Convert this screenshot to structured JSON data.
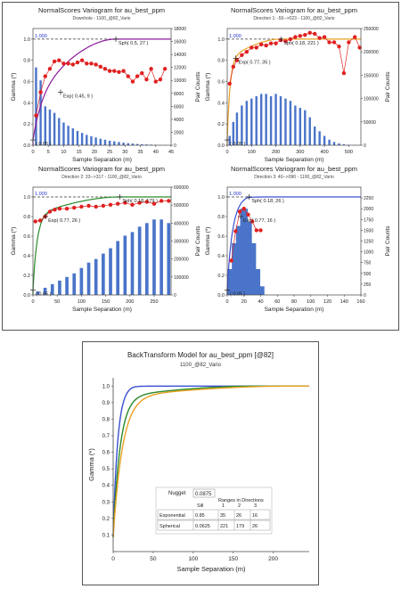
{
  "chart_data": [
    {
      "type": "scatter",
      "title": "NormalScores  Variogram for au_best_ppm",
      "subtitle": "Downhole - 1100_@82_Vario",
      "xlabel": "Sample Separation (m)",
      "ylabel": "Gamma (*)",
      "y2label": "Pair Counts",
      "xlim": [
        0,
        45
      ],
      "xticks": [
        0,
        5,
        10,
        15,
        20,
        25,
        30,
        35,
        40,
        45
      ],
      "ylim": [
        0,
        1.1
      ],
      "yticks": [
        0.0,
        0.2,
        0.4,
        0.6,
        0.8,
        1.0
      ],
      "y2lim": [
        0,
        18000
      ],
      "y2ticks": [
        0,
        2000,
        4000,
        6000,
        8000,
        10000,
        12000,
        14000,
        16000,
        18000
      ],
      "sill_label": "1.000",
      "model_color": "#8b1a9b",
      "model": {
        "nugget": 0.05,
        "exp": {
          "sill": 0.45,
          "range": 9
        },
        "sph": {
          "sill": 0.5,
          "range": 27
        }
      },
      "annotations": [
        {
          "label": "Sph( 0.5, 27 )",
          "x": 27,
          "y": 1.0
        },
        {
          "label": "Exp( 0.45, 9 )",
          "x": 9,
          "y": 0.5
        },
        {
          "label": "( 0.05 )",
          "x": 0,
          "y": 0.05
        }
      ],
      "points": [
        [
          1,
          0.28
        ],
        [
          2.5,
          0.5
        ],
        [
          4,
          0.65
        ],
        [
          5.5,
          0.72
        ],
        [
          7,
          0.79
        ],
        [
          8.5,
          0.8
        ],
        [
          10,
          0.77
        ],
        [
          11.5,
          0.77
        ],
        [
          13,
          0.76
        ],
        [
          14.5,
          0.78
        ],
        [
          16,
          0.8
        ],
        [
          17.5,
          0.77
        ],
        [
          19,
          0.77
        ],
        [
          20.5,
          0.76
        ],
        [
          22,
          0.74
        ],
        [
          23.5,
          0.72
        ],
        [
          25,
          0.7
        ],
        [
          26.5,
          0.7
        ],
        [
          28,
          0.69
        ],
        [
          29.5,
          0.7
        ],
        [
          31,
          0.65
        ],
        [
          32.5,
          0.6
        ],
        [
          34,
          0.65
        ],
        [
          35.5,
          0.68
        ],
        [
          37,
          0.62
        ],
        [
          38.5,
          0.72
        ],
        [
          40,
          0.6
        ],
        [
          41.5,
          0.62
        ],
        [
          43,
          0.72
        ]
      ],
      "pairs": [
        [
          1,
          12000
        ],
        [
          2.5,
          10000
        ],
        [
          4,
          6000
        ],
        [
          5.5,
          5500
        ],
        [
          7,
          5000
        ],
        [
          8.5,
          4200
        ],
        [
          10,
          3500
        ],
        [
          11.5,
          3000
        ],
        [
          13,
          2600
        ],
        [
          14.5,
          2200
        ],
        [
          16,
          1900
        ],
        [
          17.5,
          1600
        ],
        [
          19,
          1400
        ],
        [
          20.5,
          1200
        ],
        [
          22,
          1000
        ],
        [
          23.5,
          850
        ],
        [
          25,
          700
        ],
        [
          26.5,
          600
        ],
        [
          28,
          500
        ],
        [
          29.5,
          400
        ],
        [
          31,
          320
        ],
        [
          32.5,
          260
        ],
        [
          34,
          200
        ],
        [
          35.5,
          150
        ],
        [
          37,
          120
        ],
        [
          38.5,
          90
        ],
        [
          40,
          70
        ],
        [
          41.5,
          50
        ],
        [
          43,
          30
        ]
      ]
    },
    {
      "type": "scatter",
      "title": "NormalScores  Variogram for au_best_ppm",
      "subtitle": "Direction 1: -55-->023 - 1100_@82_Vario",
      "xlabel": "Sample Separation (m)",
      "ylabel": "Gamma (*)",
      "y2label": "Pair Counts",
      "xlim": [
        0,
        550
      ],
      "xticks": [
        0,
        100,
        200,
        300,
        400,
        500
      ],
      "ylim": [
        0,
        1.1
      ],
      "yticks": [
        0.0,
        0.2,
        0.4,
        0.6,
        0.8,
        1.0
      ],
      "y2lim": [
        0,
        250000
      ],
      "y2ticks": [
        0,
        50000,
        100000,
        150000,
        200000,
        250000
      ],
      "sill_label": "1.000",
      "model_color": "#e8a020",
      "model": {
        "nugget": 0.05,
        "exp": {
          "sill": 0.77,
          "range": 35
        },
        "sph": {
          "sill": 0.18,
          "range": 221
        }
      },
      "annotations": [
        {
          "label": "Sph( 0.18, 221 )",
          "x": 221,
          "y": 1.0
        },
        {
          "label": "Exp( 0.77, 35 )",
          "x": 35,
          "y": 0.82
        },
        {
          "label": "( 0.05 )",
          "x": 0,
          "y": 0.05
        }
      ],
      "points": [
        [
          10,
          0.58
        ],
        [
          25,
          0.74
        ],
        [
          40,
          0.8
        ],
        [
          60,
          0.85
        ],
        [
          80,
          0.88
        ],
        [
          100,
          0.92
        ],
        [
          120,
          0.92
        ],
        [
          140,
          0.95
        ],
        [
          160,
          0.94
        ],
        [
          180,
          0.96
        ],
        [
          200,
          0.96
        ],
        [
          220,
          0.99
        ],
        [
          240,
          0.98
        ],
        [
          260,
          1.0
        ],
        [
          280,
          1.02
        ],
        [
          300,
          1.03
        ],
        [
          320,
          1.04
        ],
        [
          340,
          1.06
        ],
        [
          360,
          1.05
        ],
        [
          380,
          1.01
        ],
        [
          400,
          1.02
        ],
        [
          420,
          0.97
        ],
        [
          440,
          0.97
        ],
        [
          460,
          0.93
        ],
        [
          480,
          0.68
        ],
        [
          500,
          0.97
        ],
        [
          525,
          1.02
        ],
        [
          545,
          0.92
        ]
      ],
      "pairs": [
        [
          10,
          20000
        ],
        [
          25,
          50000
        ],
        [
          40,
          70000
        ],
        [
          60,
          85000
        ],
        [
          80,
          95000
        ],
        [
          100,
          100000
        ],
        [
          120,
          105000
        ],
        [
          140,
          110000
        ],
        [
          160,
          110000
        ],
        [
          180,
          105000
        ],
        [
          200,
          110000
        ],
        [
          220,
          105000
        ],
        [
          240,
          100000
        ],
        [
          260,
          95000
        ],
        [
          280,
          85000
        ],
        [
          300,
          80000
        ],
        [
          320,
          75000
        ],
        [
          340,
          60000
        ],
        [
          360,
          40000
        ],
        [
          380,
          30000
        ],
        [
          400,
          20000
        ],
        [
          420,
          12000
        ],
        [
          440,
          7000
        ],
        [
          460,
          4000
        ],
        [
          480,
          2000
        ],
        [
          500,
          1000
        ],
        [
          525,
          500
        ],
        [
          545,
          200
        ]
      ]
    },
    {
      "type": "scatter",
      "title": "NormalScores  Variogram for au_best_ppm",
      "subtitle": "Direction 2: 33-->317 - 1100_@82_Vario",
      "xlabel": "Sample Separation (m)",
      "ylabel": "Gamma (*)",
      "y2label": "Pair Counts",
      "xlim": [
        0,
        285
      ],
      "xticks": [
        0,
        50,
        100,
        150,
        200,
        250
      ],
      "ylim": [
        0,
        1.1
      ],
      "yticks": [
        0.0,
        0.2,
        0.4,
        0.6,
        0.8,
        1.0
      ],
      "y2lim": [
        0,
        600000
      ],
      "y2ticks": [
        0,
        100000,
        200000,
        300000,
        400000,
        500000,
        600000
      ],
      "sill_label": "1.000",
      "model_color": "#2a8a2a",
      "model": {
        "nugget": 0.05,
        "exp": {
          "sill": 0.77,
          "range": 26
        },
        "sph": {
          "sill": 0.18,
          "range": 179
        }
      },
      "annotations": [
        {
          "label": "Sph( 0.18, 179 )",
          "x": 179,
          "y": 1.0
        },
        {
          "label": "Exp( 0.77, 26 )",
          "x": 26,
          "y": 0.8
        },
        {
          "label": "( 0.05 )",
          "x": 0,
          "y": 0.05
        }
      ],
      "points": [
        [
          5,
          0.75
        ],
        [
          15,
          0.76
        ],
        [
          25,
          0.8
        ],
        [
          35,
          0.85
        ],
        [
          45,
          0.87
        ],
        [
          55,
          0.88
        ],
        [
          70,
          0.88
        ],
        [
          85,
          0.89
        ],
        [
          100,
          0.9
        ],
        [
          115,
          0.91
        ],
        [
          130,
          0.9
        ],
        [
          145,
          0.91
        ],
        [
          160,
          0.92
        ],
        [
          175,
          0.93
        ],
        [
          190,
          0.94
        ],
        [
          205,
          0.92
        ],
        [
          220,
          0.94
        ],
        [
          235,
          0.95
        ],
        [
          250,
          0.93
        ],
        [
          265,
          0.96
        ],
        [
          280,
          0.96
        ]
      ],
      "pairs": [
        [
          10,
          20000
        ],
        [
          25,
          40000
        ],
        [
          40,
          60000
        ],
        [
          55,
          80000
        ],
        [
          70,
          100000
        ],
        [
          85,
          120000
        ],
        [
          100,
          150000
        ],
        [
          115,
          180000
        ],
        [
          130,
          200000
        ],
        [
          145,
          230000
        ],
        [
          160,
          260000
        ],
        [
          175,
          300000
        ],
        [
          190,
          330000
        ],
        [
          205,
          350000
        ],
        [
          220,
          380000
        ],
        [
          235,
          400000
        ],
        [
          250,
          420000
        ],
        [
          265,
          420000
        ],
        [
          280,
          400000
        ]
      ]
    },
    {
      "type": "scatter",
      "title": "NormalScores  Variogram for au_best_ppm",
      "subtitle": "Direction 3: 40-->090 - 1100_@82_Vario",
      "xlabel": "Sample Separation (m)",
      "ylabel": "Gamma (*)",
      "y2label": "Pair Counts",
      "xlim": [
        0,
        160
      ],
      "xticks": [
        0,
        20,
        40,
        60,
        80,
        100,
        120,
        140,
        160
      ],
      "ylim": [
        0,
        1.1
      ],
      "yticks": [
        0.0,
        0.2,
        0.4,
        0.6,
        0.8,
        1.0
      ],
      "y2lim": [
        0,
        2500
      ],
      "y2ticks": [
        0,
        250,
        500,
        750,
        1000,
        1250,
        1500,
        1750,
        2000,
        2250
      ],
      "sill_label": "1.000",
      "model_color": "#3a4fd0",
      "model": {
        "nugget": 0.05,
        "exp": {
          "sill": 0.77,
          "range": 16
        },
        "sph": {
          "sill": 0.18,
          "range": 26
        }
      },
      "annotations": [
        {
          "label": "Sph( 0.18, 26 )",
          "x": 26,
          "y": 1.0
        },
        {
          "label": "Exp( 0.77, 16 )",
          "x": 16,
          "y": 0.8
        },
        {
          "label": "( 0.05 )",
          "x": 0,
          "y": 0.05
        }
      ],
      "points": [
        [
          5,
          0.35
        ],
        [
          10,
          0.65
        ],
        [
          15,
          0.85
        ],
        [
          20,
          0.88
        ],
        [
          25,
          0.82
        ],
        [
          30,
          0.75
        ],
        [
          35,
          0.66
        ],
        [
          40,
          0.66
        ]
      ],
      "pairs": [
        [
          5,
          600
        ],
        [
          10,
          1200
        ],
        [
          15,
          1600
        ],
        [
          20,
          2000
        ],
        [
          25,
          1700
        ],
        [
          30,
          1200
        ],
        [
          35,
          600
        ],
        [
          40,
          200
        ]
      ]
    },
    {
      "type": "line",
      "title": "BackTransform Model for au_best_ppm [@82]",
      "subtitle": "1100_@82_Vario",
      "xlabel": "Sample Separation (m)",
      "ylabel": "Gamma (*)",
      "xlim": [
        0,
        245
      ],
      "xticks": [
        0,
        50,
        100,
        150,
        200
      ],
      "ylim": [
        0,
        1.05
      ],
      "yticks": [
        0.1,
        0.2,
        0.3,
        0.4,
        0.5,
        0.6,
        0.7,
        0.8,
        0.9,
        1.0
      ],
      "series": [
        {
          "color": "#3a4fd0",
          "nugget": 0.0875,
          "c_exp": 0.85,
          "a_exp": 16,
          "c_sph": 0.0625,
          "a_sph": 26
        },
        {
          "color": "#2a8a2a",
          "nugget": 0.0875,
          "c_exp": 0.85,
          "a_exp": 26,
          "c_sph": 0.0625,
          "a_sph": 179
        },
        {
          "color": "#e8a020",
          "nugget": 0.0875,
          "c_exp": 0.85,
          "a_exp": 35,
          "c_sph": 0.0625,
          "a_sph": 221
        }
      ],
      "table": {
        "nugget_label": "Nugget",
        "nugget_value": "0.0875",
        "sill_label": "Sill",
        "ranges_label": "Ranges in Directions",
        "dir_headers": [
          "1",
          "2",
          "3"
        ],
        "rows": [
          {
            "name": "Exponential",
            "sill": "0.85",
            "ranges": [
              "35",
              "26",
              "16"
            ]
          },
          {
            "name": "Spherical",
            "sill": "0.0625",
            "ranges": [
              "221",
              "179",
              "26"
            ]
          }
        ]
      }
    }
  ]
}
